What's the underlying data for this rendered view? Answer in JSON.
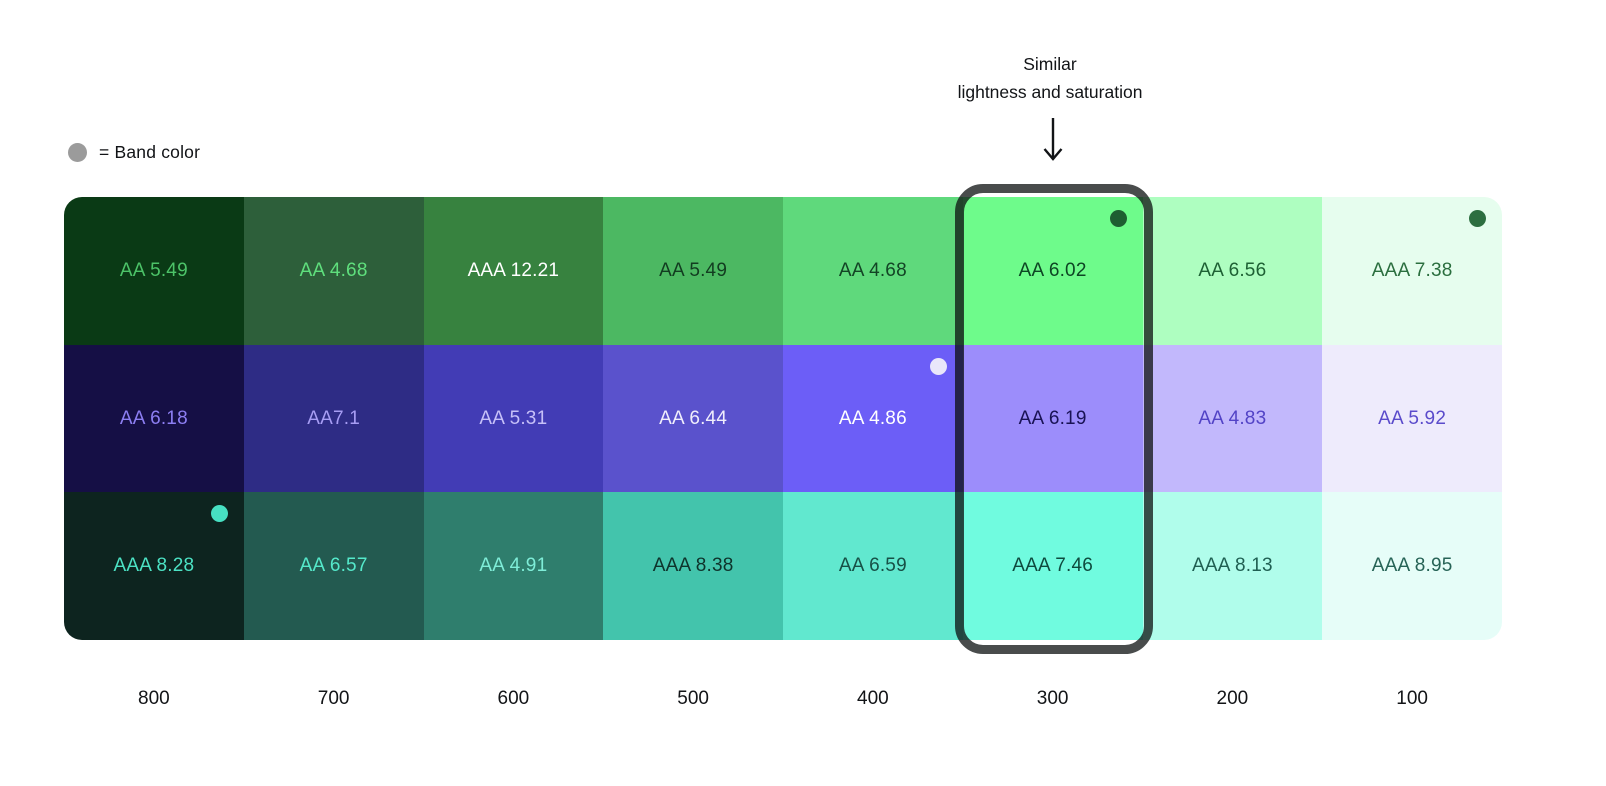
{
  "page": {
    "background": "#ffffff"
  },
  "legend": {
    "dot_color": "#9b9b9b",
    "label": "= Band color"
  },
  "annotation": {
    "line1": "Similar",
    "line2": "lightness and saturation",
    "arrow_icon": "down-arrow"
  },
  "highlight": {
    "column": "300",
    "border_color": "rgba(12,16,16,0.75)",
    "border_width": 9
  },
  "columns": [
    "800",
    "700",
    "600",
    "500",
    "400",
    "300",
    "200",
    "100"
  ],
  "bands": [
    {
      "name": "green",
      "cells": [
        {
          "label": "AA 5.49",
          "bg": "#0a3a15",
          "fg": "#4cc368"
        },
        {
          "label": "AA 4.68",
          "bg": "#2d5f3a",
          "fg": "#5fdf7d"
        },
        {
          "label": "AAA 12.21",
          "bg": "#37823f",
          "fg": "#ffffff"
        },
        {
          "label": "AA 5.49",
          "bg": "#4cb862",
          "fg": "#123c20"
        },
        {
          "label": "AA 4.68",
          "bg": "#5fd97c",
          "fg": "#134425"
        },
        {
          "label": "AA 6.02",
          "bg": "#6efb8b",
          "fg": "#0d4523",
          "dot": "#1e5e31"
        },
        {
          "label": "AA 6.56",
          "bg": "#aefec0",
          "fg": "#1e6134"
        },
        {
          "label": "AAA 7.38",
          "bg": "#e6fdee",
          "fg": "#2a6e3e",
          "dot": "#2d6e40"
        }
      ]
    },
    {
      "name": "violet",
      "cells": [
        {
          "label": "AA 6.18",
          "bg": "#150f45",
          "fg": "#8c7ef2"
        },
        {
          "label": "AA7.1",
          "bg": "#2e2c85",
          "fg": "#a79df4"
        },
        {
          "label": "AA 5.31",
          "bg": "#423cb5",
          "fg": "#c6c0f8"
        },
        {
          "label": "AA 6.44",
          "bg": "#5a52cc",
          "fg": "#f0eefc"
        },
        {
          "label": "AA 4.86",
          "bg": "#6c5ef7",
          "fg": "#ffffff",
          "dot": "#e9e6fa"
        },
        {
          "label": "AA 6.19",
          "bg": "#9c8dfb",
          "fg": "#191254"
        },
        {
          "label": "AA 4.83",
          "bg": "#c2b8fc",
          "fg": "#5243c6"
        },
        {
          "label": "AA 5.92",
          "bg": "#eeebfc",
          "fg": "#5a4bcb"
        }
      ]
    },
    {
      "name": "teal",
      "cells": [
        {
          "label": "AAA 8.28",
          "bg": "#0d241f",
          "fg": "#4ce2c4",
          "dot": "#47e0c2"
        },
        {
          "label": "AA 6.57",
          "bg": "#235a50",
          "fg": "#55e9cb"
        },
        {
          "label": "AA 4.91",
          "bg": "#2f7e6d",
          "fg": "#7fedd8"
        },
        {
          "label": "AAA 8.38",
          "bg": "#43c4ac",
          "fg": "#0e332b"
        },
        {
          "label": "AA 6.59",
          "bg": "#61e8cf",
          "fg": "#175046"
        },
        {
          "label": "AAA 7.46",
          "bg": "#70fbdf",
          "fg": "#0e4a3e"
        },
        {
          "label": "AAA 8.13",
          "bg": "#b0fdeb",
          "fg": "#1f5f52"
        },
        {
          "label": "AAA 8.95",
          "bg": "#e6fdf8",
          "fg": "#266356"
        }
      ]
    }
  ],
  "chart_data": {
    "type": "heatmap",
    "title": "Color band contrast ratios",
    "categories": [
      "800",
      "700",
      "600",
      "500",
      "400",
      "300",
      "200",
      "100"
    ],
    "series": [
      {
        "name": "green band",
        "ratings": [
          "AA",
          "AA",
          "AAA",
          "AA",
          "AA",
          "AA",
          "AA",
          "AAA"
        ],
        "values": [
          5.49,
          4.68,
          12.21,
          5.49,
          4.68,
          6.02,
          6.56,
          7.38
        ]
      },
      {
        "name": "violet band",
        "ratings": [
          "AA",
          "AA",
          "AA",
          "AA",
          "AA",
          "AA",
          "AA",
          "AA"
        ],
        "values": [
          6.18,
          7.1,
          5.31,
          6.44,
          4.86,
          6.19,
          4.83,
          5.92
        ]
      },
      {
        "name": "teal band",
        "ratings": [
          "AAA",
          "AA",
          "AA",
          "AAA",
          "AA",
          "AAA",
          "AAA",
          "AAA"
        ],
        "values": [
          8.28,
          6.57,
          4.91,
          8.38,
          6.59,
          7.46,
          8.13,
          8.95
        ]
      }
    ],
    "annotations": [
      "= Band color",
      "Similar lightness and saturation",
      "highlighted column: 300"
    ],
    "legend_position": "top-left",
    "grid": false
  }
}
